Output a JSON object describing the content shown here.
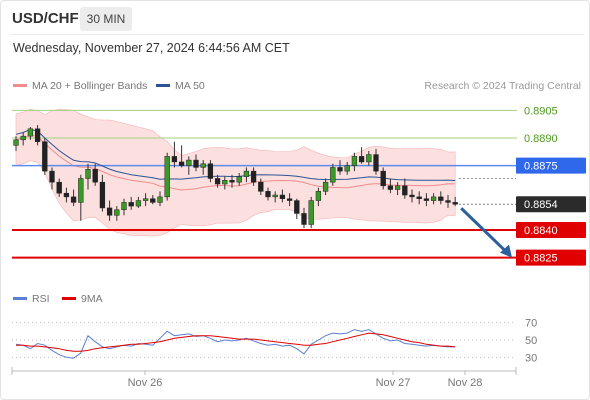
{
  "symbol": "USD/CHF",
  "timeframe": "30 MIN",
  "datetime": "Wednesday, November 27, 2024 6:44:56 AM CET",
  "credit": "Research © 2024 Trading Central",
  "legend": {
    "bb": {
      "label": "MA 20 + Bollinger Bands",
      "color": "#f08c8c"
    },
    "ma50": {
      "label": "MA 50",
      "color": "#2c5494"
    }
  },
  "rsi_legend": {
    "rsi": {
      "label": "RSI",
      "color": "#5b7fd6"
    },
    "ma9": {
      "label": "9MA",
      "color": "#e00000"
    }
  },
  "chart_data": {
    "type": "candlestick",
    "y_range": [
      0.8815,
      0.8915
    ],
    "levels": [
      {
        "value": 0.8905,
        "label": "0.8905",
        "style": "green-line"
      },
      {
        "value": 0.889,
        "label": "0.8890",
        "style": "green-line"
      },
      {
        "value": 0.8875,
        "label": "0.8875",
        "style": "blue-box"
      },
      {
        "value": 0.8854,
        "label": "0.8854",
        "style": "last-price"
      },
      {
        "value": 0.884,
        "label": "0.8840",
        "style": "red-box"
      },
      {
        "value": 0.8825,
        "label": "0.8825",
        "style": "red-box"
      }
    ],
    "x_labels": [
      "Nov 26",
      "Nov 27",
      "Nov 28"
    ],
    "candles_ohlc": [
      [
        0.8886,
        0.8891,
        0.8883,
        0.8889
      ],
      [
        0.8889,
        0.8893,
        0.8886,
        0.8891
      ],
      [
        0.8891,
        0.8896,
        0.8889,
        0.8895
      ],
      [
        0.8895,
        0.8897,
        0.8886,
        0.8888
      ],
      [
        0.8888,
        0.889,
        0.887,
        0.8872
      ],
      [
        0.8872,
        0.8874,
        0.8862,
        0.8866
      ],
      [
        0.8866,
        0.8868,
        0.8858,
        0.886
      ],
      [
        0.886,
        0.8863,
        0.8855,
        0.8858
      ],
      [
        0.8858,
        0.8862,
        0.8853,
        0.8855
      ],
      [
        0.8855,
        0.887,
        0.8845,
        0.8868
      ],
      [
        0.8868,
        0.8876,
        0.8862,
        0.8873
      ],
      [
        0.8873,
        0.8876,
        0.8864,
        0.8866
      ],
      [
        0.8866,
        0.887,
        0.885,
        0.8852
      ],
      [
        0.8852,
        0.8856,
        0.8845,
        0.8848
      ],
      [
        0.8848,
        0.8853,
        0.8845,
        0.8851
      ],
      [
        0.8851,
        0.8857,
        0.8848,
        0.8855
      ],
      [
        0.8855,
        0.8858,
        0.8851,
        0.8853
      ],
      [
        0.8853,
        0.8858,
        0.8852,
        0.8856
      ],
      [
        0.8856,
        0.886,
        0.8853,
        0.8857
      ],
      [
        0.8857,
        0.8859,
        0.8854,
        0.8855
      ],
      [
        0.8855,
        0.8861,
        0.8853,
        0.8858
      ],
      [
        0.8858,
        0.8882,
        0.8856,
        0.888
      ],
      [
        0.888,
        0.8888,
        0.8874,
        0.8877
      ],
      [
        0.8877,
        0.8886,
        0.8874,
        0.8875
      ],
      [
        0.8875,
        0.888,
        0.887,
        0.8878
      ],
      [
        0.8878,
        0.8881,
        0.8872,
        0.8874
      ],
      [
        0.8874,
        0.8878,
        0.887,
        0.8876
      ],
      [
        0.8876,
        0.8878,
        0.8866,
        0.8868
      ],
      [
        0.8868,
        0.887,
        0.8863,
        0.8865
      ],
      [
        0.8865,
        0.8869,
        0.8862,
        0.8867
      ],
      [
        0.8867,
        0.887,
        0.8863,
        0.8866
      ],
      [
        0.8866,
        0.8871,
        0.8864,
        0.8869
      ],
      [
        0.8869,
        0.8874,
        0.8866,
        0.8872
      ],
      [
        0.8872,
        0.8874,
        0.8864,
        0.8866
      ],
      [
        0.8866,
        0.8868,
        0.8859,
        0.8861
      ],
      [
        0.8861,
        0.8863,
        0.8856,
        0.8858
      ],
      [
        0.8858,
        0.8861,
        0.8855,
        0.8859
      ],
      [
        0.8859,
        0.8862,
        0.8855,
        0.8857
      ],
      [
        0.8857,
        0.886,
        0.8853,
        0.8856
      ],
      [
        0.8856,
        0.8857,
        0.8846,
        0.8849
      ],
      [
        0.8849,
        0.8852,
        0.8841,
        0.8843
      ],
      [
        0.8843,
        0.8858,
        0.8841,
        0.8856
      ],
      [
        0.8856,
        0.8863,
        0.8853,
        0.8861
      ],
      [
        0.8861,
        0.8868,
        0.8859,
        0.8866
      ],
      [
        0.8866,
        0.8876,
        0.8864,
        0.8874
      ],
      [
        0.8874,
        0.8878,
        0.887,
        0.8872
      ],
      [
        0.8872,
        0.8877,
        0.887,
        0.8875
      ],
      [
        0.8875,
        0.8882,
        0.8872,
        0.888
      ],
      [
        0.888,
        0.8885,
        0.8876,
        0.8877
      ],
      [
        0.8877,
        0.8883,
        0.8875,
        0.8881
      ],
      [
        0.8881,
        0.8884,
        0.887,
        0.8872
      ],
      [
        0.8872,
        0.8874,
        0.8862,
        0.8864
      ],
      [
        0.8864,
        0.8868,
        0.886,
        0.8862
      ],
      [
        0.8862,
        0.8866,
        0.8859,
        0.8864
      ],
      [
        0.8864,
        0.8868,
        0.8857,
        0.8859
      ],
      [
        0.8859,
        0.8862,
        0.8855,
        0.8858
      ],
      [
        0.8858,
        0.8861,
        0.8854,
        0.8857
      ],
      [
        0.8857,
        0.886,
        0.8853,
        0.8856
      ],
      [
        0.8856,
        0.886,
        0.8854,
        0.8858
      ],
      [
        0.8858,
        0.8861,
        0.8854,
        0.8856
      ],
      [
        0.8856,
        0.8859,
        0.8852,
        0.8855
      ],
      [
        0.8855,
        0.8858,
        0.8853,
        0.8854
      ]
    ],
    "forecast": {
      "from": 0.8854,
      "to": 0.8825
    },
    "rsi_panel": {
      "y_ticks": [
        70,
        50,
        30
      ],
      "rsi": [
        45,
        44,
        40,
        46,
        44,
        38,
        33,
        30,
        29,
        35,
        55,
        48,
        42,
        40,
        42,
        44,
        43,
        46,
        45,
        44,
        52,
        60,
        55,
        56,
        57,
        54,
        55,
        52,
        48,
        50,
        49,
        50,
        52,
        49,
        46,
        44,
        45,
        43,
        44,
        40,
        34,
        45,
        50,
        55,
        58,
        57,
        58,
        62,
        60,
        62,
        57,
        52,
        49,
        50,
        46,
        45,
        44,
        43,
        44,
        43,
        42,
        42
      ],
      "ma9": [
        44,
        44,
        43,
        43,
        42,
        41,
        40,
        38,
        37,
        37,
        38,
        40,
        41,
        42,
        43,
        44,
        45,
        45,
        46,
        47,
        48,
        50,
        52,
        53,
        54,
        55,
        55,
        55,
        54,
        53,
        52,
        51,
        51,
        51,
        50,
        49,
        48,
        47,
        46,
        45,
        44,
        44,
        45,
        46,
        48,
        50,
        52,
        54,
        56,
        58,
        57,
        56,
        54,
        52,
        50,
        48,
        47,
        45,
        44,
        43,
        43,
        42
      ]
    }
  }
}
